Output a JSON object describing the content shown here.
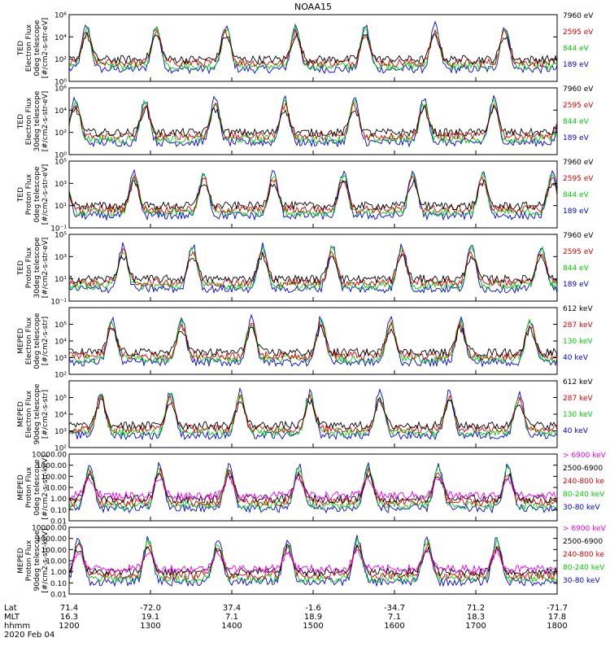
{
  "title": "NOAA15",
  "chart_data": {
    "type": "line",
    "title": "NOAA15",
    "x_axis": {
      "time_ticks": [
        "1200",
        "1300",
        "1400",
        "1500",
        "1600",
        "1700",
        "1800"
      ],
      "lat_ticks": [
        "71.4",
        "-72.0",
        "37.4",
        "-1.6",
        "-34.7",
        "71.2",
        "-71.7"
      ],
      "mlt_ticks": [
        "16.3",
        "19.1",
        "7.1",
        "18.9",
        "7.1",
        "18.3",
        "17.8"
      ],
      "row_labels": [
        "Lat",
        "MLT",
        "hhmm"
      ],
      "date": "2020 Feb 04"
    },
    "panels": [
      {
        "ylabel": [
          "TED",
          "Electron Flux",
          "0deg telescope",
          "[#/cm2-s-str-eV]"
        ],
        "scale": "log",
        "ylim": [
          1,
          1000000
        ],
        "yticks": [
          {
            "v": 1,
            "t": "10⁰"
          },
          {
            "v": 100,
            "t": "10²"
          },
          {
            "v": 10000,
            "t": "10⁴"
          },
          {
            "v": 1000000,
            "t": "10⁶"
          }
        ],
        "legend": [
          {
            "text": "7960 eV",
            "color": "#000000"
          },
          {
            "text": "2595 eV",
            "color": "#dd0000"
          },
          {
            "text": "844 eV",
            "color": "#00cc00"
          },
          {
            "text": "189 eV",
            "color": "#0000dd"
          }
        ]
      },
      {
        "ylabel": [
          "TED",
          "Electron Flux",
          "30deg telescope",
          "[#/cm2-s-str-eV]"
        ],
        "scale": "log",
        "ylim": [
          1,
          1000000
        ],
        "yticks": [
          {
            "v": 1,
            "t": "10⁰"
          },
          {
            "v": 100,
            "t": "10²"
          },
          {
            "v": 10000,
            "t": "10⁴"
          },
          {
            "v": 1000000,
            "t": "10⁶"
          }
        ],
        "legend": [
          {
            "text": "7960 eV",
            "color": "#000000"
          },
          {
            "text": "2595 eV",
            "color": "#dd0000"
          },
          {
            "text": "844 eV",
            "color": "#00cc00"
          },
          {
            "text": "189 eV",
            "color": "#0000dd"
          }
        ]
      },
      {
        "ylabel": [
          "TED",
          "Proton Flux",
          "0deg telescope",
          "[#/cm2-s-str-eV]"
        ],
        "scale": "log",
        "ylim": [
          0.1,
          100000
        ],
        "yticks": [
          {
            "v": 0.1,
            "t": "10⁻¹"
          },
          {
            "v": 10,
            "t": "10¹"
          },
          {
            "v": 1000,
            "t": "10³"
          },
          {
            "v": 100000,
            "t": "10⁵"
          }
        ],
        "legend": [
          {
            "text": "7960 eV",
            "color": "#000000"
          },
          {
            "text": "2595 eV",
            "color": "#dd0000"
          },
          {
            "text": "844 eV",
            "color": "#00cc00"
          },
          {
            "text": "189 eV",
            "color": "#0000dd"
          }
        ]
      },
      {
        "ylabel": [
          "TED",
          "Proton Flux",
          "30deg telescope",
          "[#/cm2-s-str-eV]"
        ],
        "scale": "log",
        "ylim": [
          0.1,
          100000
        ],
        "yticks": [
          {
            "v": 0.1,
            "t": "10⁻¹"
          },
          {
            "v": 10,
            "t": "10¹"
          },
          {
            "v": 1000,
            "t": "10³"
          },
          {
            "v": 100000,
            "t": "10⁵"
          }
        ],
        "legend": [
          {
            "text": "7960 eV",
            "color": "#000000"
          },
          {
            "text": "2595 eV",
            "color": "#dd0000"
          },
          {
            "text": "844 eV",
            "color": "#00cc00"
          },
          {
            "text": "189 eV",
            "color": "#0000dd"
          }
        ]
      },
      {
        "ylabel": [
          "MEPED",
          "Electron Flux",
          "0deg telescope",
          "[#/cm2-s-str]"
        ],
        "scale": "log",
        "ylim": [
          100,
          1000000
        ],
        "yticks": [
          {
            "v": 100,
            "t": "10²"
          },
          {
            "v": 1000,
            "t": "10³"
          },
          {
            "v": 10000,
            "t": "10⁴"
          },
          {
            "v": 100000,
            "t": "10⁵"
          }
        ],
        "legend": [
          {
            "text": "612 keV",
            "color": "#000000"
          },
          {
            "text": "287 keV",
            "color": "#dd0000"
          },
          {
            "text": "130 keV",
            "color": "#00cc00"
          },
          {
            "text": "40 keV",
            "color": "#0000dd"
          }
        ]
      },
      {
        "ylabel": [
          "MEPED",
          "Electron Flux",
          "90deg telescope",
          "[#/cm2-s-str]"
        ],
        "scale": "log",
        "ylim": [
          100,
          1000000
        ],
        "yticks": [
          {
            "v": 100,
            "t": "10²"
          },
          {
            "v": 1000,
            "t": "10³"
          },
          {
            "v": 10000,
            "t": "10⁴"
          },
          {
            "v": 100000,
            "t": "10⁵"
          }
        ],
        "legend": [
          {
            "text": "612 keV",
            "color": "#000000"
          },
          {
            "text": "287 keV",
            "color": "#dd0000"
          },
          {
            "text": "130 keV",
            "color": "#00cc00"
          },
          {
            "text": "40 keV",
            "color": "#0000dd"
          }
        ]
      },
      {
        "ylabel": [
          "MEPED",
          "Proton Flux",
          "0deg telescope",
          "[#/cm2-s-str-keV]"
        ],
        "scale": "log",
        "ylim": [
          0.01,
          10000
        ],
        "yticks": [
          {
            "v": 0.01,
            "t": "0.01"
          },
          {
            "v": 0.1,
            "t": "0.10"
          },
          {
            "v": 1,
            "t": "1.00"
          },
          {
            "v": 10,
            "t": "10.00"
          },
          {
            "v": 100,
            "t": "100.00"
          },
          {
            "v": 1000,
            "t": "1000.00"
          },
          {
            "v": 10000,
            "t": "10000.00"
          }
        ],
        "legend": [
          {
            "text": "> 6900 keV",
            "color": "#ee00ee"
          },
          {
            "text": "2500-6900",
            "color": "#000000"
          },
          {
            "text": "240-800 ke",
            "color": "#dd0000"
          },
          {
            "text": "80-240 keV",
            "color": "#00cc00"
          },
          {
            "text": "30-80 keV",
            "color": "#0000dd"
          }
        ]
      },
      {
        "ylabel": [
          "MEPED",
          "Proton Flux",
          "90deg telescope",
          "[#/cm2-s-str-keV]"
        ],
        "scale": "log",
        "ylim": [
          0.01,
          10000
        ],
        "yticks": [
          {
            "v": 0.01,
            "t": "0.01"
          },
          {
            "v": 0.1,
            "t": "0.10"
          },
          {
            "v": 1,
            "t": "1.00"
          },
          {
            "v": 10,
            "t": "10.00"
          },
          {
            "v": 100,
            "t": "100.00"
          },
          {
            "v": 1000,
            "t": "1000.00"
          },
          {
            "v": 10000,
            "t": "10000.00"
          }
        ],
        "legend": [
          {
            "text": "> 6900 keV",
            "color": "#ee00ee"
          },
          {
            "text": "2500-6900",
            "color": "#000000"
          },
          {
            "text": "240-800 ke",
            "color": "#dd0000"
          },
          {
            "text": "80-240 keV",
            "color": "#00cc00"
          },
          {
            "text": "30-80 keV",
            "color": "#0000dd"
          }
        ]
      }
    ]
  }
}
